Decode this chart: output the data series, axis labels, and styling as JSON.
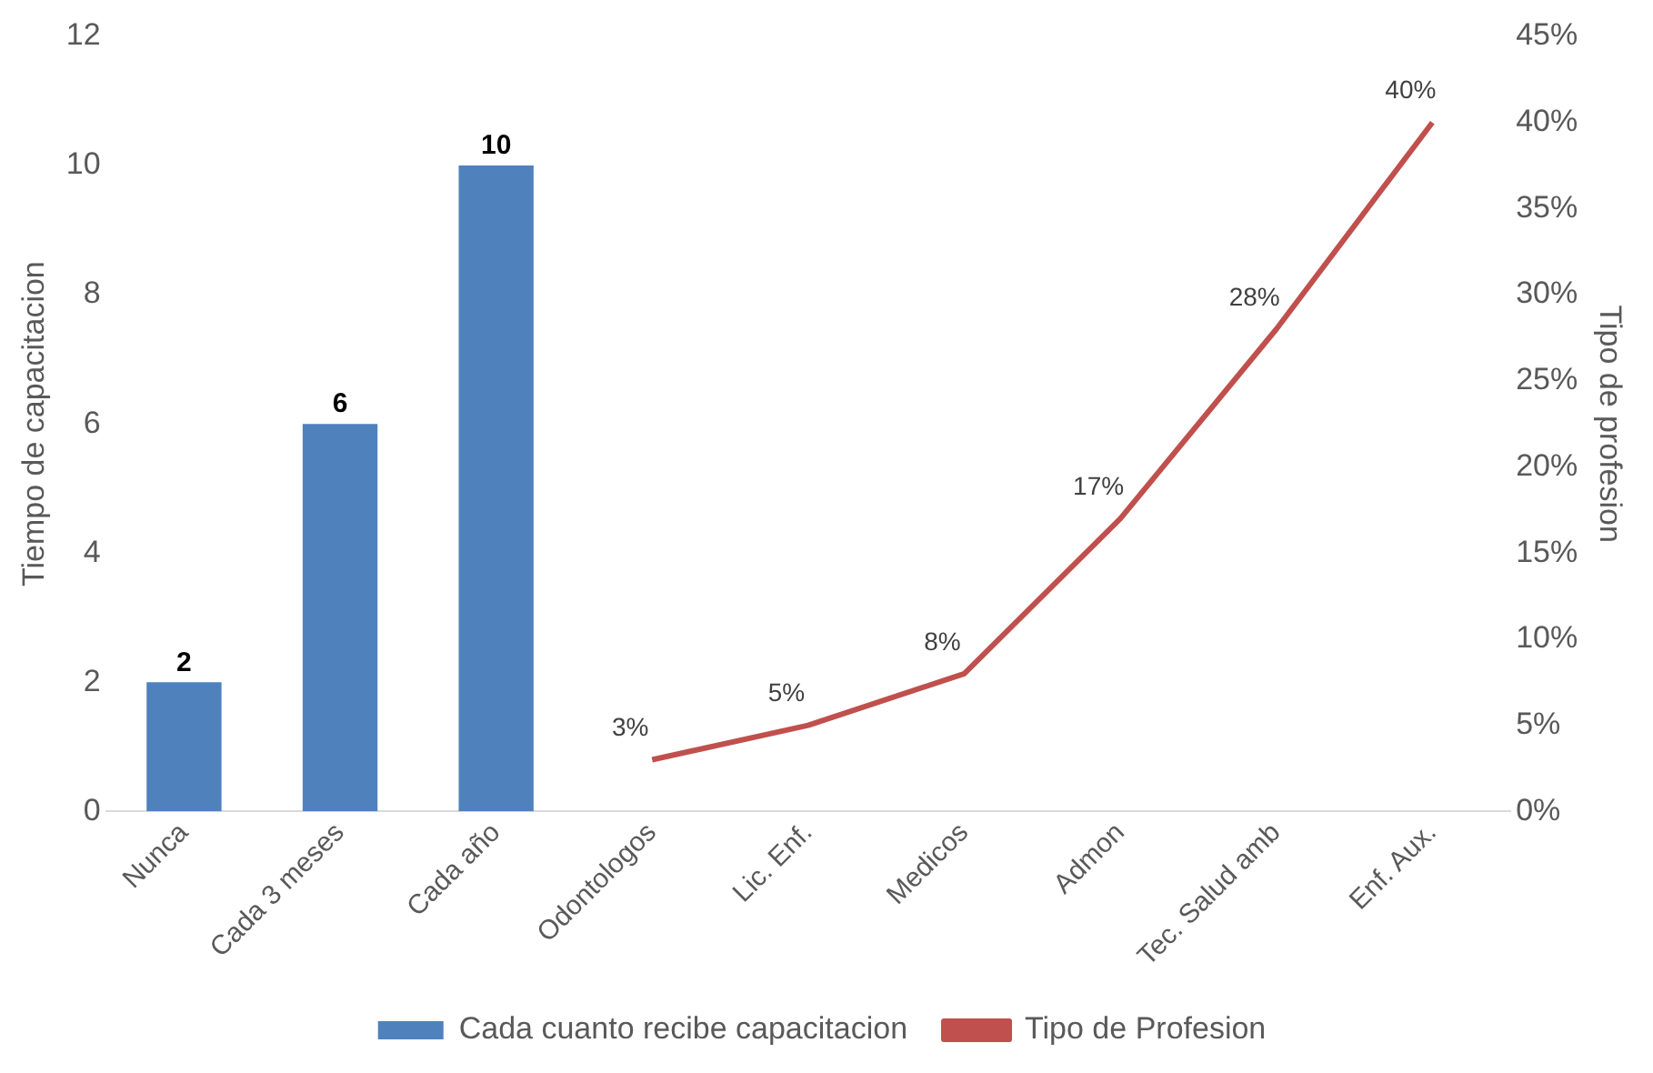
{
  "chart_data": {
    "type": "bar",
    "xlabel": null,
    "ylabel": "Tiempo de capacitacion",
    "y2label": "Tipo de profesion",
    "categories": [
      "Nunca",
      "Cada 3 meses",
      "Cada año",
      "Odontologos",
      "Lic. Enf.",
      "Medicos",
      "Admon",
      "Tec. Salud amb",
      "Enf. Aux."
    ],
    "series": [
      {
        "name": "Cada cuanto recibe capacitacion",
        "color": "#4f81bd",
        "values": [
          2,
          6,
          10,
          null,
          null,
          null,
          null,
          null,
          null
        ],
        "value_labels": [
          "2",
          "6",
          "10",
          null,
          null,
          null,
          null,
          null,
          null
        ]
      },
      {
        "name": "Tipo de Profesion",
        "type": "line",
        "axis": "y2",
        "color": "#c0504d",
        "values": [
          null,
          null,
          null,
          3,
          5,
          8,
          17,
          28,
          40
        ],
        "value_labels": [
          null,
          null,
          null,
          "3%",
          "5%",
          "8%",
          "17%",
          "28%",
          "40%"
        ]
      }
    ],
    "ylim": [
      0,
      12
    ],
    "yticks": [
      0,
      2,
      4,
      6,
      8,
      10,
      12
    ],
    "y2lim": [
      0,
      45
    ],
    "y2ticks": [
      {
        "value": 0,
        "label": "0%"
      },
      {
        "value": 5,
        "label": "5%"
      },
      {
        "value": 10,
        "label": "10%"
      },
      {
        "value": 15,
        "label": "15%"
      },
      {
        "value": 20,
        "label": "20%"
      },
      {
        "value": 25,
        "label": "25%"
      },
      {
        "value": 30,
        "label": "30%"
      },
      {
        "value": 35,
        "label": "35%"
      },
      {
        "value": 40,
        "label": "40%"
      },
      {
        "value": 45,
        "label": "45%"
      }
    ],
    "grid": false,
    "legend": "bottom",
    "marker": "none",
    "line_style": "solid"
  }
}
